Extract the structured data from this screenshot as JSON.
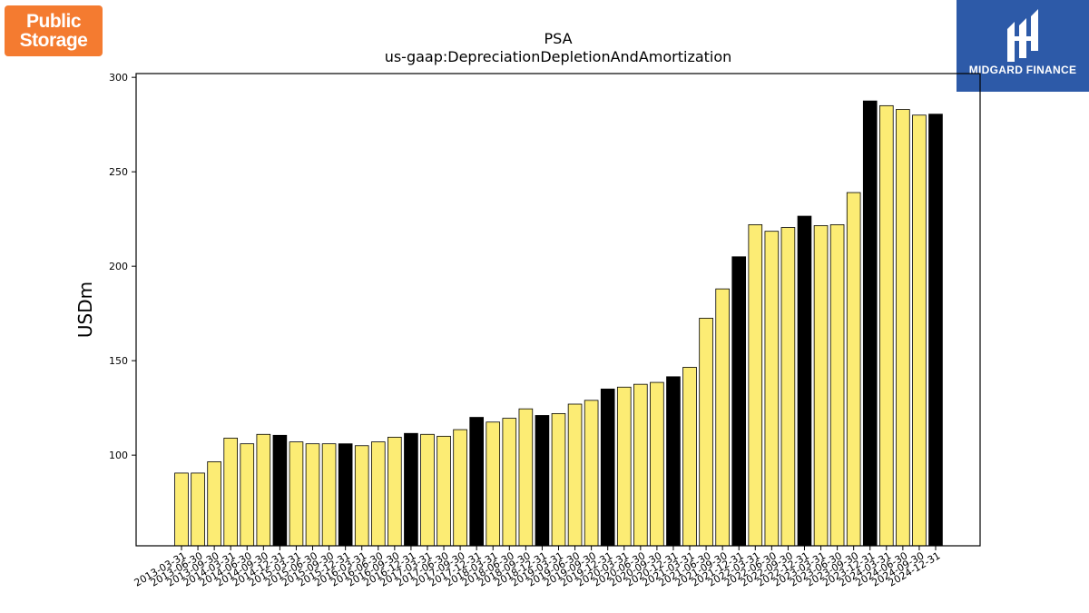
{
  "branding": {
    "left_logo_line1": "Public",
    "left_logo_line2": "Storage",
    "right_logo_name": "MIDGARD FINANCE"
  },
  "chart_data": {
    "type": "bar",
    "title": "PSA",
    "subtitle": "us-gaap:DepreciationDepletionAndAmortization",
    "xlabel": "",
    "ylabel": "USDm",
    "ylim": [
      52,
      302
    ],
    "yticks": [
      100,
      150,
      200,
      250,
      300
    ],
    "grid": false,
    "colors": {
      "quarter": "#fcec74",
      "year_end": "#000000",
      "edge": "#000000"
    },
    "categories": [
      "2013-03-31",
      "2013-06-30",
      "2013-09-30",
      "2014-03-31",
      "2014-06-30",
      "2014-09-30",
      "2014-12-31",
      "2015-03-31",
      "2015-06-30",
      "2015-09-30",
      "2015-12-31",
      "2016-03-31",
      "2016-06-30",
      "2016-09-30",
      "2016-12-31",
      "2017-03-31",
      "2017-06-30",
      "2017-09-30",
      "2017-12-31",
      "2018-03-31",
      "2018-06-30",
      "2018-09-30",
      "2018-12-31",
      "2019-03-31",
      "2019-06-30",
      "2019-09-30",
      "2019-12-31",
      "2020-03-31",
      "2020-06-30",
      "2020-09-30",
      "2020-12-31",
      "2021-03-31",
      "2021-06-30",
      "2021-09-30",
      "2021-12-31",
      "2022-03-31",
      "2022-06-30",
      "2022-09-30",
      "2022-12-31",
      "2023-03-31",
      "2023-06-30",
      "2023-09-30",
      "2023-12-31",
      "2024-03-31",
      "2024-06-30",
      "2024-09-30",
      "2024-12-31"
    ],
    "values": [
      90.5,
      90.5,
      96.5,
      109,
      106,
      111,
      110.5,
      107,
      106,
      106,
      106,
      105,
      107,
      109.5,
      111.5,
      111,
      110,
      113.5,
      120,
      117.5,
      119.5,
      124.5,
      121,
      122,
      127,
      129,
      135,
      136,
      137.5,
      138.5,
      141.5,
      146.5,
      172.5,
      188,
      205,
      222,
      218.5,
      220.5,
      226.5,
      221.5,
      222,
      239,
      287.5,
      285,
      283,
      280,
      280.5
    ],
    "year_end": [
      false,
      false,
      false,
      false,
      false,
      false,
      true,
      false,
      false,
      false,
      true,
      false,
      false,
      false,
      true,
      false,
      false,
      false,
      true,
      false,
      false,
      false,
      true,
      false,
      false,
      false,
      true,
      false,
      false,
      false,
      true,
      false,
      false,
      false,
      true,
      false,
      false,
      false,
      true,
      false,
      false,
      false,
      true,
      false,
      false,
      false,
      true
    ]
  }
}
